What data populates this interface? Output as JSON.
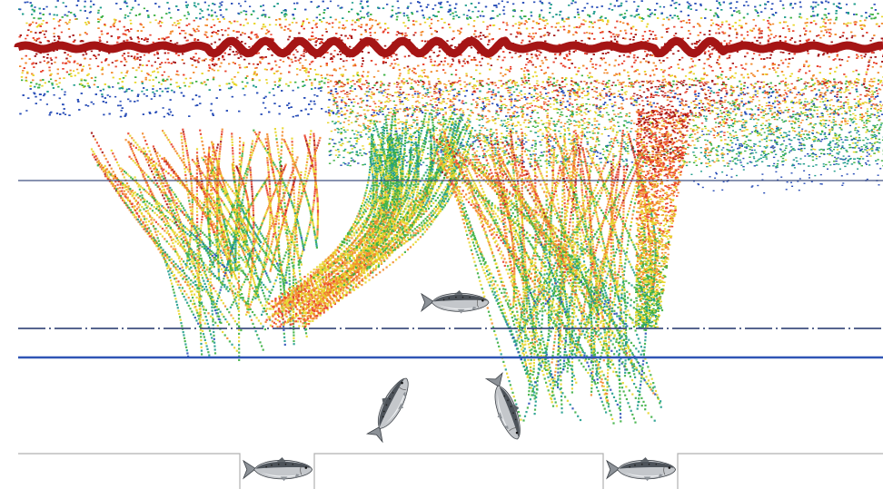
{
  "figure": {
    "kind": "echogram-with-fish-illustrations",
    "palette": {
      "background": "#ffffff",
      "weak": "#2a4fb8",
      "low": "#1f9c8c",
      "mid": "#3cb043",
      "mid_high": "#e8d62a",
      "high": "#f28a2e",
      "very_high": "#e8432e",
      "peak": "#a51515",
      "depth_line": "#2f55b5",
      "panel_line": "#b8b8b8",
      "fish_body": "#b9bcc0",
      "fish_back": "#4a4f55"
    },
    "fish": [
      {
        "id": "fish-horizontal-center",
        "orientation": "horizontal"
      },
      {
        "id": "fish-diving-left",
        "orientation": "diagonal-down-left"
      },
      {
        "id": "fish-diving-right",
        "orientation": "diagonal-down-right"
      },
      {
        "id": "fish-panel-left",
        "orientation": "horizontal"
      },
      {
        "id": "fish-panel-right",
        "orientation": "horizontal"
      }
    ]
  }
}
